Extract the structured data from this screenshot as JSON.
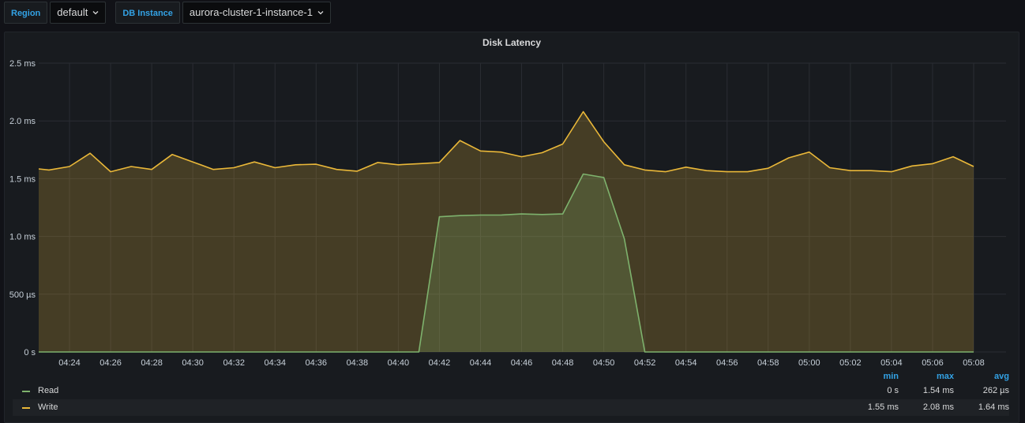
{
  "variables": [
    {
      "label": "Region",
      "value": "default"
    },
    {
      "label": "DB Instance",
      "value": "aurora-cluster-1-instance-1"
    }
  ],
  "panel": {
    "title": "Disk Latency"
  },
  "chart_data": {
    "type": "area",
    "title": "Disk Latency",
    "y_unit": "ms",
    "ylim": [
      0,
      2.5
    ],
    "y_ticks": [
      0,
      0.5,
      1.0,
      1.5,
      2.0,
      2.5
    ],
    "y_tick_labels": [
      "0 s",
      "500 µs",
      "1.0 ms",
      "1.5 ms",
      "2.0 ms",
      "2.5 ms"
    ],
    "x_ticks": [
      "04:24",
      "04:26",
      "04:28",
      "04:30",
      "04:32",
      "04:34",
      "04:36",
      "04:38",
      "04:40",
      "04:42",
      "04:44",
      "04:46",
      "04:48",
      "04:50",
      "04:52",
      "04:54",
      "04:56",
      "04:58",
      "05:00",
      "05:02",
      "05:04",
      "05:06",
      "05:08"
    ],
    "x_start": "04:22:30",
    "x_end": "05:08:00",
    "grid": true,
    "series": [
      {
        "name": "Read",
        "color": "#7eb26d",
        "points": [
          [
            "04:22:30",
            0
          ],
          [
            "04:41:00",
            0
          ],
          [
            "04:42:00",
            1.17
          ],
          [
            "04:43:00",
            1.18
          ],
          [
            "04:44:00",
            1.185
          ],
          [
            "04:45:00",
            1.185
          ],
          [
            "04:46:00",
            1.195
          ],
          [
            "04:47:00",
            1.19
          ],
          [
            "04:48:00",
            1.195
          ],
          [
            "04:49:00",
            1.54
          ],
          [
            "04:50:00",
            1.51
          ],
          [
            "04:51:00",
            0.98
          ],
          [
            "04:52:00",
            0
          ],
          [
            "05:08:00",
            0
          ]
        ]
      },
      {
        "name": "Write",
        "color": "#eab839",
        "points": [
          [
            "04:22:30",
            1.585
          ],
          [
            "04:23:00",
            1.575
          ],
          [
            "04:24:00",
            1.605
          ],
          [
            "04:25:00",
            1.72
          ],
          [
            "04:26:00",
            1.56
          ],
          [
            "04:27:00",
            1.605
          ],
          [
            "04:28:00",
            1.58
          ],
          [
            "04:29:00",
            1.71
          ],
          [
            "04:30:00",
            1.645
          ],
          [
            "04:31:00",
            1.58
          ],
          [
            "04:32:00",
            1.595
          ],
          [
            "04:33:00",
            1.645
          ],
          [
            "04:34:00",
            1.595
          ],
          [
            "04:35:00",
            1.62
          ],
          [
            "04:36:00",
            1.625
          ],
          [
            "04:37:00",
            1.58
          ],
          [
            "04:38:00",
            1.565
          ],
          [
            "04:39:00",
            1.64
          ],
          [
            "04:40:00",
            1.62
          ],
          [
            "04:41:00",
            1.63
          ],
          [
            "04:42:00",
            1.64
          ],
          [
            "04:43:00",
            1.83
          ],
          [
            "04:44:00",
            1.74
          ],
          [
            "04:45:00",
            1.73
          ],
          [
            "04:46:00",
            1.69
          ],
          [
            "04:47:00",
            1.725
          ],
          [
            "04:48:00",
            1.8
          ],
          [
            "04:49:00",
            2.08
          ],
          [
            "04:50:00",
            1.82
          ],
          [
            "04:51:00",
            1.62
          ],
          [
            "04:52:00",
            1.575
          ],
          [
            "04:53:00",
            1.56
          ],
          [
            "04:54:00",
            1.6
          ],
          [
            "04:55:00",
            1.57
          ],
          [
            "04:56:00",
            1.56
          ],
          [
            "04:57:00",
            1.56
          ],
          [
            "04:58:00",
            1.59
          ],
          [
            "04:59:00",
            1.68
          ],
          [
            "05:00:00",
            1.73
          ],
          [
            "05:01:00",
            1.595
          ],
          [
            "05:02:00",
            1.57
          ],
          [
            "05:03:00",
            1.57
          ],
          [
            "05:04:00",
            1.56
          ],
          [
            "05:05:00",
            1.61
          ],
          [
            "05:06:00",
            1.63
          ],
          [
            "05:07:00",
            1.69
          ],
          [
            "05:08:00",
            1.605
          ]
        ]
      }
    ]
  },
  "legend": {
    "headers": {
      "min": "min",
      "max": "max",
      "avg": "avg"
    },
    "rows": [
      {
        "name": "Read",
        "color": "#7eb26d",
        "min": "0 s",
        "max": "1.54 ms",
        "avg": "262 µs"
      },
      {
        "name": "Write",
        "color": "#eab839",
        "min": "1.55 ms",
        "max": "2.08 ms",
        "avg": "1.64 ms"
      }
    ]
  }
}
